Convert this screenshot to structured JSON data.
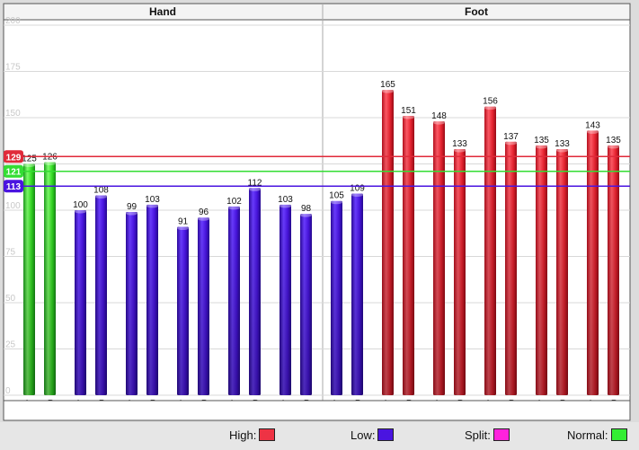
{
  "panels": [
    {
      "label": "Hand"
    },
    {
      "label": "Foot"
    }
  ],
  "legend": [
    {
      "label": "High:",
      "color": "#ee3344"
    },
    {
      "label": "Low:",
      "color": "#4a14e0"
    },
    {
      "label": "Split:",
      "color": "#ff22dd"
    },
    {
      "label": "Normal:",
      "color": "#33ee33"
    }
  ],
  "chart_data": {
    "type": "bar",
    "ylim": [
      0,
      200
    ],
    "yticks": [
      0,
      25,
      50,
      75,
      100,
      125,
      150,
      175,
      200
    ],
    "grid": true,
    "legend_position": "bottom",
    "reference_lines": [
      {
        "value": 129,
        "label": "129",
        "color": "#e02a3a"
      },
      {
        "value": 121,
        "label": "121",
        "color": "#33dd33"
      },
      {
        "value": 113,
        "label": "113",
        "color": "#4a14e0"
      }
    ],
    "groups": [
      {
        "name": "LU",
        "panel": "Hand",
        "status": "normal",
        "bars": [
          {
            "side": "L",
            "value": 125
          },
          {
            "side": "R",
            "value": 126
          }
        ]
      },
      {
        "name": "PC",
        "panel": "Hand",
        "status": "low",
        "bars": [
          {
            "side": "L",
            "value": 100
          },
          {
            "side": "R",
            "value": 108
          }
        ]
      },
      {
        "name": "HT",
        "panel": "Hand",
        "status": "low",
        "bars": [
          {
            "side": "L",
            "value": 99
          },
          {
            "side": "R",
            "value": 103
          }
        ]
      },
      {
        "name": "SI",
        "panel": "Hand",
        "status": "low",
        "bars": [
          {
            "side": "L",
            "value": 91
          },
          {
            "side": "R",
            "value": 96
          }
        ]
      },
      {
        "name": "TE",
        "panel": "Hand",
        "status": "low",
        "bars": [
          {
            "side": "L",
            "value": 102
          },
          {
            "side": "R",
            "value": 112
          }
        ]
      },
      {
        "name": "LI",
        "panel": "Hand",
        "status": "low",
        "bars": [
          {
            "side": "L",
            "value": 103
          },
          {
            "side": "R",
            "value": 98
          }
        ]
      },
      {
        "name": "SP",
        "panel": "Foot",
        "status": "low",
        "bars": [
          {
            "side": "L",
            "value": 105
          },
          {
            "side": "R",
            "value": 109
          }
        ]
      },
      {
        "name": "LR",
        "panel": "Foot",
        "status": "high",
        "bars": [
          {
            "side": "L",
            "value": 165
          },
          {
            "side": "R",
            "value": 151
          }
        ]
      },
      {
        "name": "KI",
        "panel": "Foot",
        "status": "high",
        "bars": [
          {
            "side": "L",
            "value": 148
          },
          {
            "side": "R",
            "value": 133
          }
        ]
      },
      {
        "name": "BL",
        "panel": "Foot",
        "status": "high",
        "bars": [
          {
            "side": "L",
            "value": 156
          },
          {
            "side": "R",
            "value": 137
          }
        ]
      },
      {
        "name": "GB",
        "panel": "Foot",
        "status": "high",
        "bars": [
          {
            "side": "L",
            "value": 135
          },
          {
            "side": "R",
            "value": 133
          }
        ]
      },
      {
        "name": "ST",
        "panel": "Foot",
        "status": "high",
        "bars": [
          {
            "side": "L",
            "value": 143
          },
          {
            "side": "R",
            "value": 135
          }
        ]
      }
    ]
  }
}
